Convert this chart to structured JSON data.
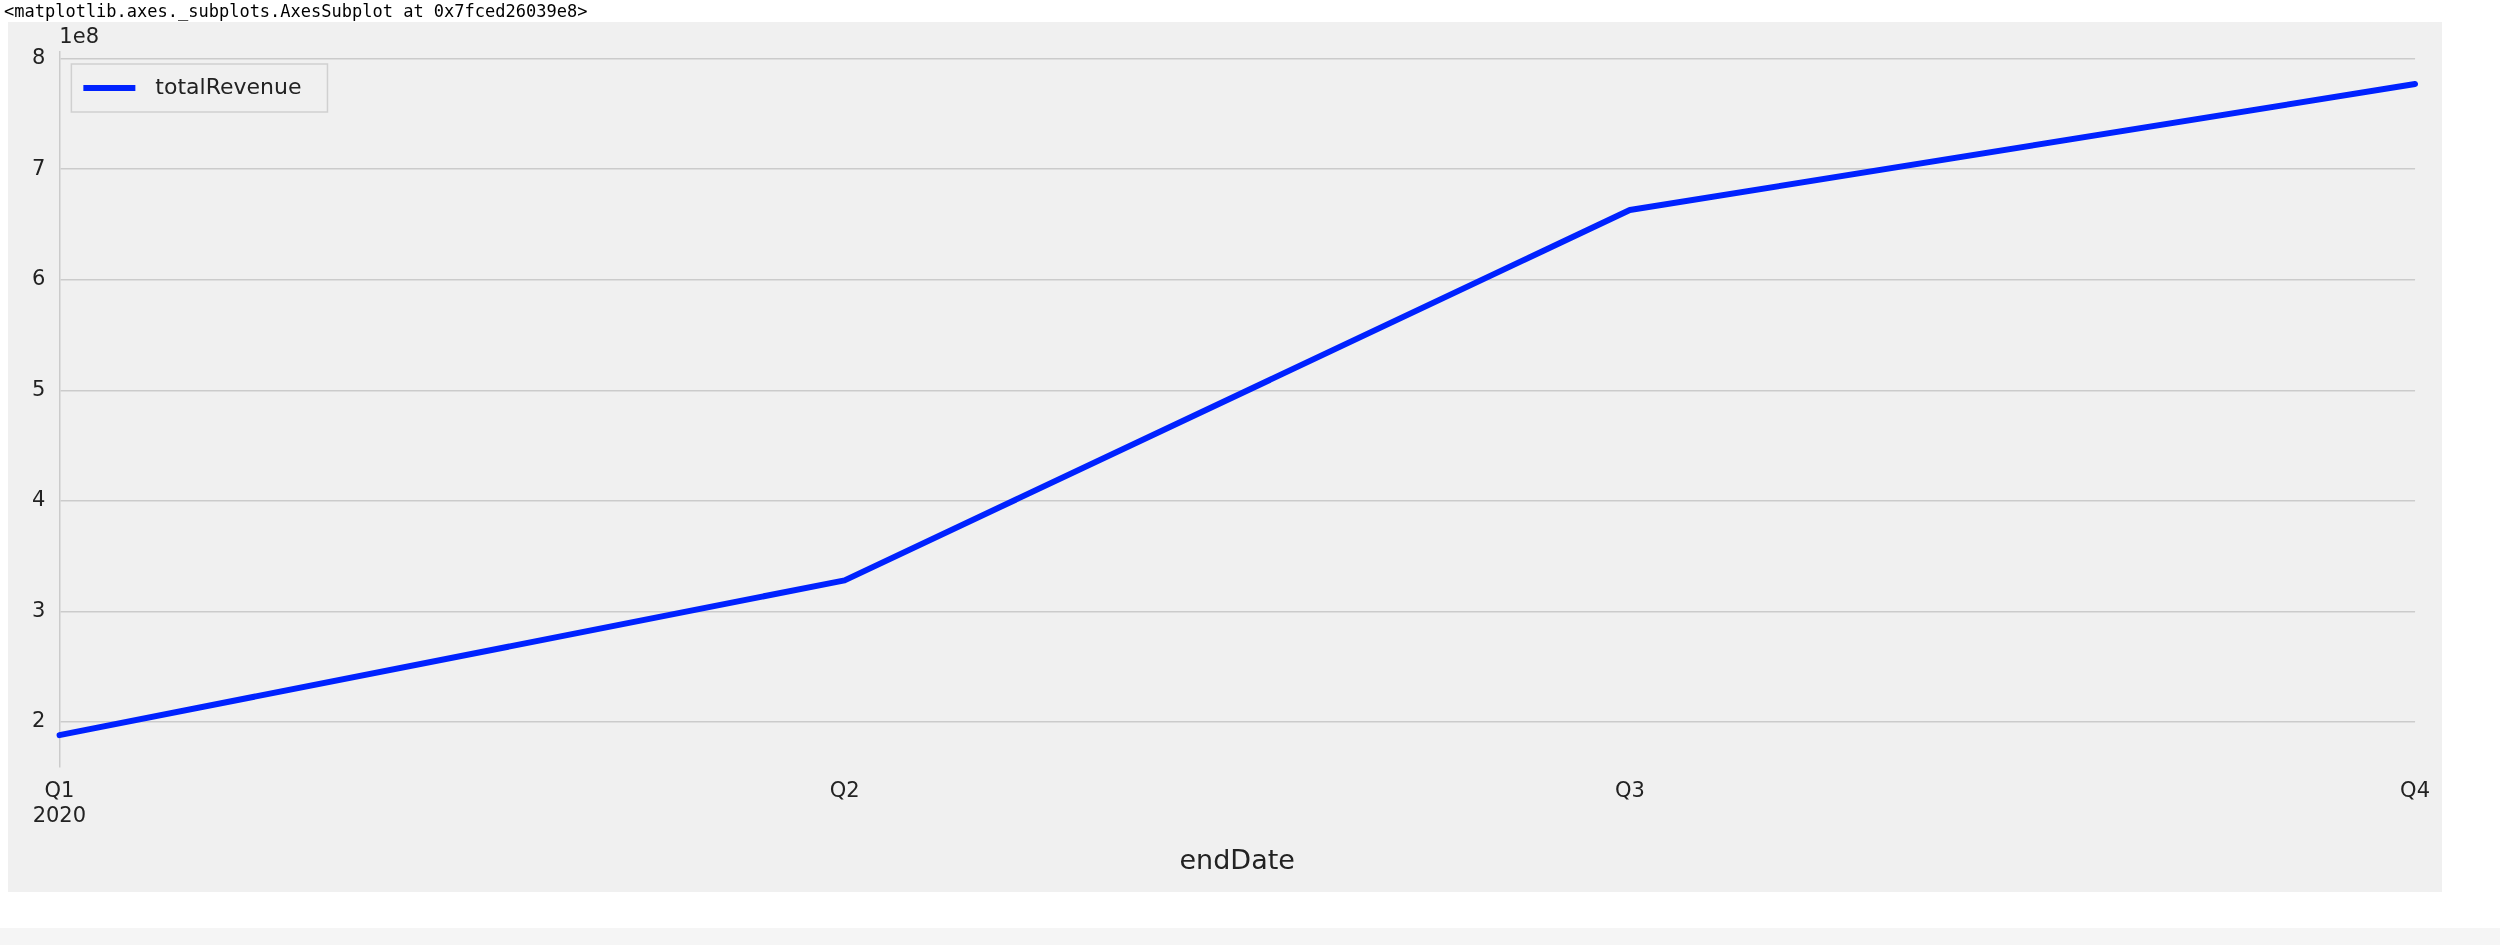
{
  "chart_data": {
    "type": "line",
    "xlabel": "endDate",
    "categories": [
      "Q1\n2020",
      "Q2",
      "Q3",
      "Q4"
    ],
    "series": [
      {
        "name": "totalRevenue",
        "color": "#0022ff",
        "values": [
          1.88,
          3.28,
          6.63,
          7.77
        ]
      }
    ],
    "ylim": [
      1.59,
      8.06
    ],
    "yticks": [
      2,
      3,
      4,
      5,
      6,
      7,
      8
    ],
    "annotations": [
      "<matplotlib.axes._subplots.AxesSubplot at 0x7fced26039e8>",
      "1e8"
    ],
    "grid": "y",
    "legend": "top left",
    "marker": "none",
    "line_style": "solid"
  }
}
